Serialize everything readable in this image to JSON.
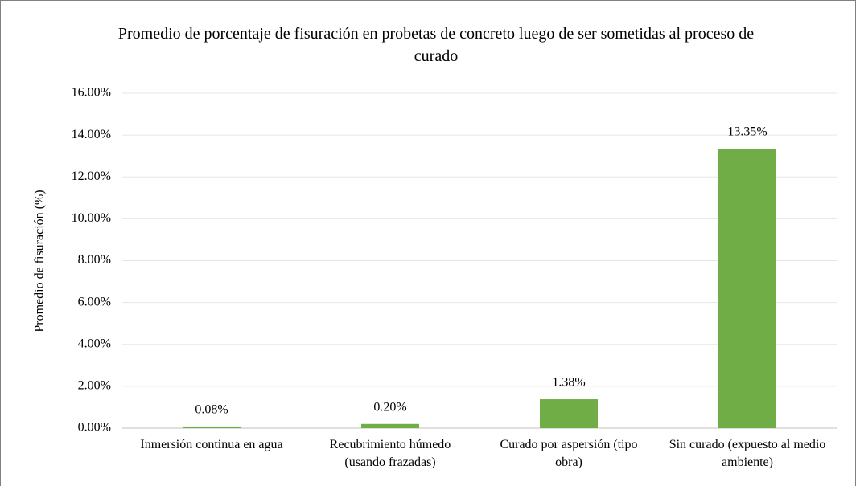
{
  "chart_data": {
    "type": "bar",
    "title": "Promedio de porcentaje de fisuración en probetas de concreto luego de ser sometidas al proceso de curado",
    "y_label": "Promedio de fisuración (%)",
    "categories": [
      "Inmersión continua en agua",
      "Recubrimiento húmedo (usando frazadas)",
      "Curado por aspersión (tipo obra)",
      "Sin curado (expuesto al medio ambiente)"
    ],
    "values": [
      0.08,
      0.2,
      1.38,
      13.35
    ],
    "value_labels": [
      "0.08%",
      "0.20%",
      "1.38%",
      "13.35%"
    ],
    "color": "#70ad47",
    "ylim": [
      0,
      16
    ],
    "yticks": [
      {
        "value": 0,
        "label": "0.00%"
      },
      {
        "value": 2,
        "label": "2.00%"
      },
      {
        "value": 4,
        "label": "4.00%"
      },
      {
        "value": 6,
        "label": "6.00%"
      },
      {
        "value": 8,
        "label": "8.00%"
      },
      {
        "value": 10,
        "label": "10.00%"
      },
      {
        "value": 12,
        "label": "12.00%"
      },
      {
        "value": 14,
        "label": "14.00%"
      },
      {
        "value": 16,
        "label": "16.00%"
      }
    ],
    "grid": true
  }
}
